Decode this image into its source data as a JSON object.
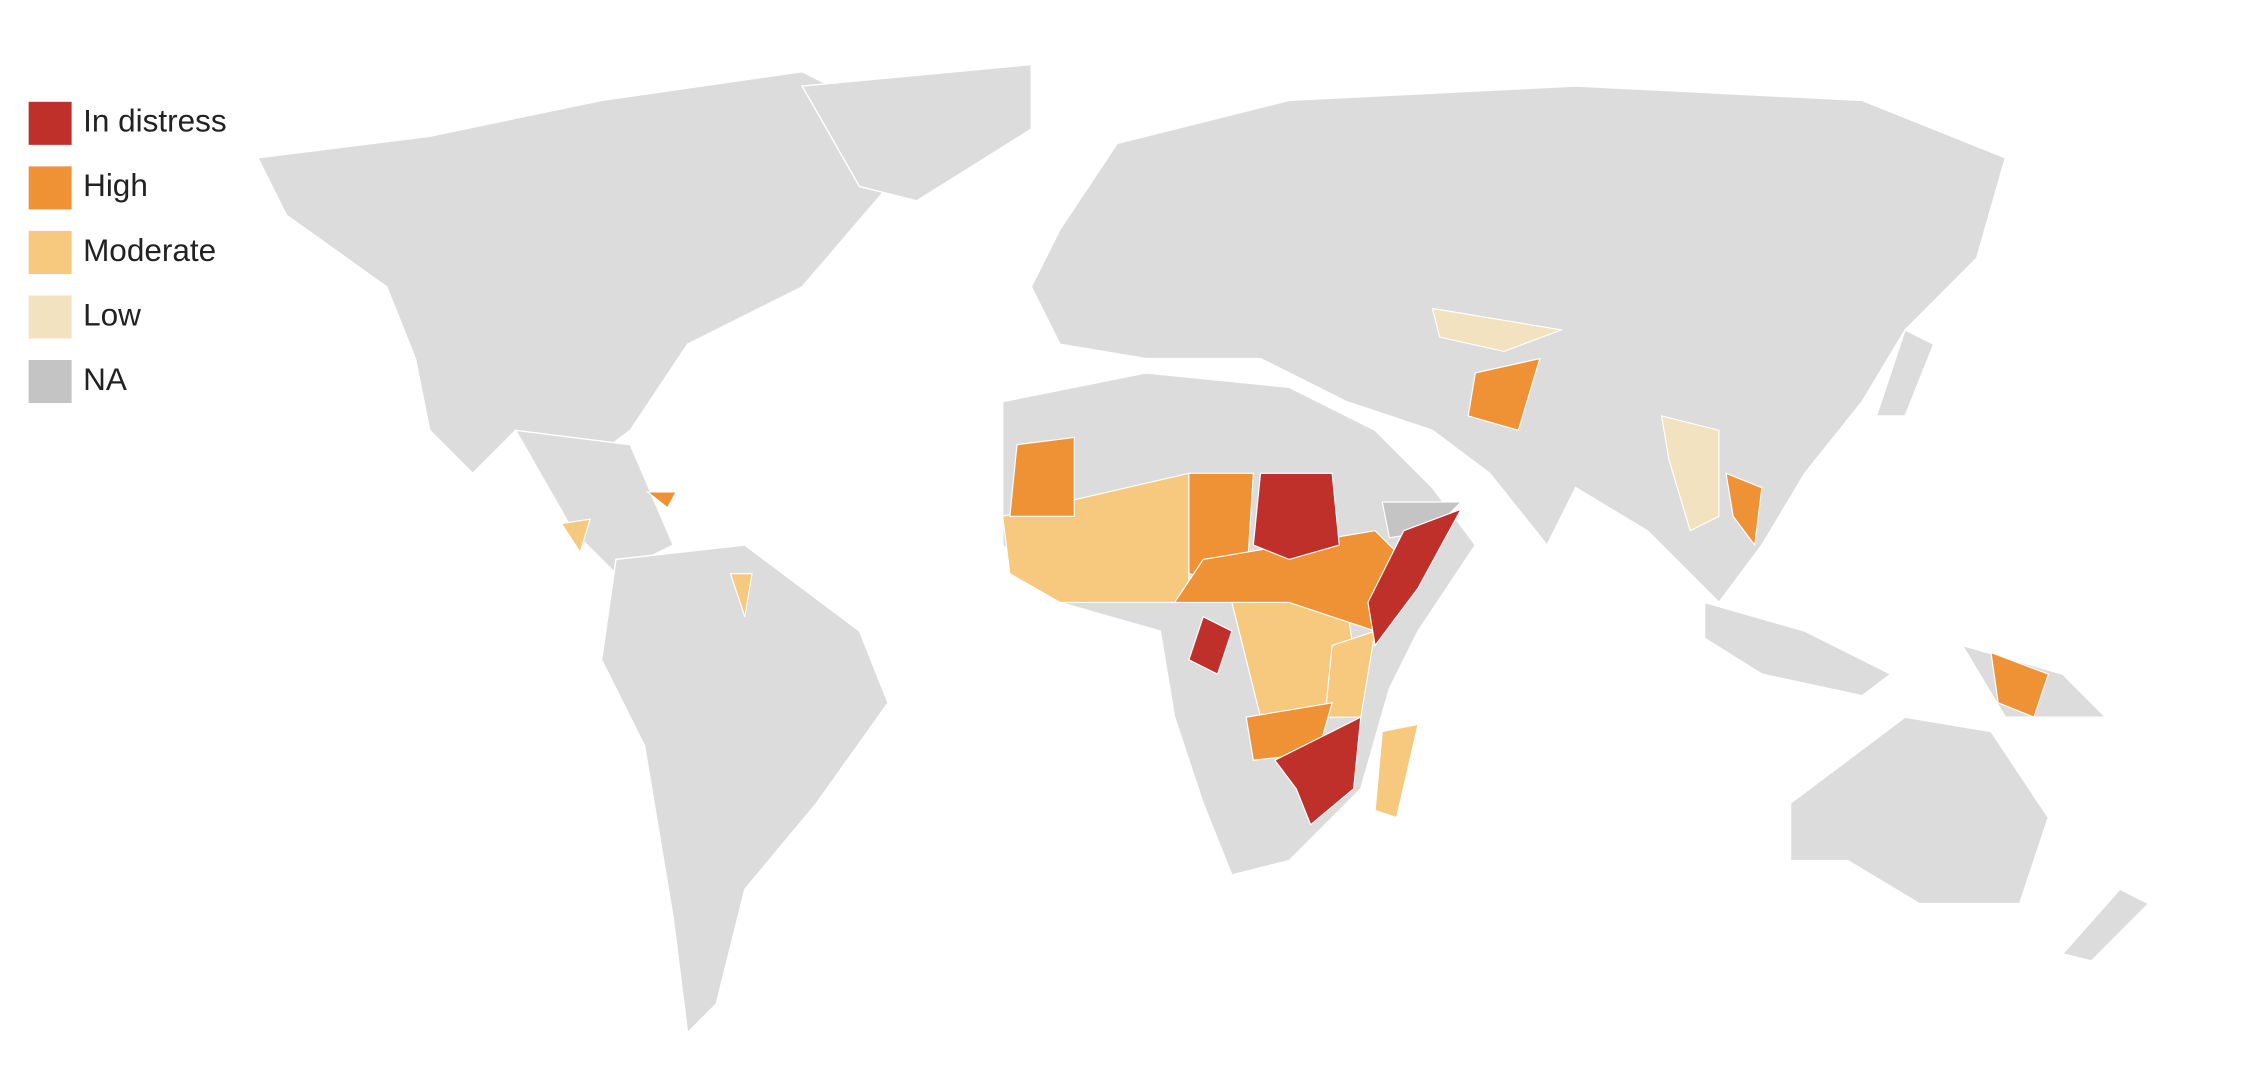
{
  "legend": {
    "items": [
      {
        "label": "In distress",
        "color": "#c0302b"
      },
      {
        "label": "High",
        "color": "#ef9135"
      },
      {
        "label": "Moderate",
        "color": "#f6c97f"
      },
      {
        "label": "Low",
        "color": "#f2e2c0"
      },
      {
        "label": "NA",
        "color": "#c4c4c4"
      }
    ]
  }
}
